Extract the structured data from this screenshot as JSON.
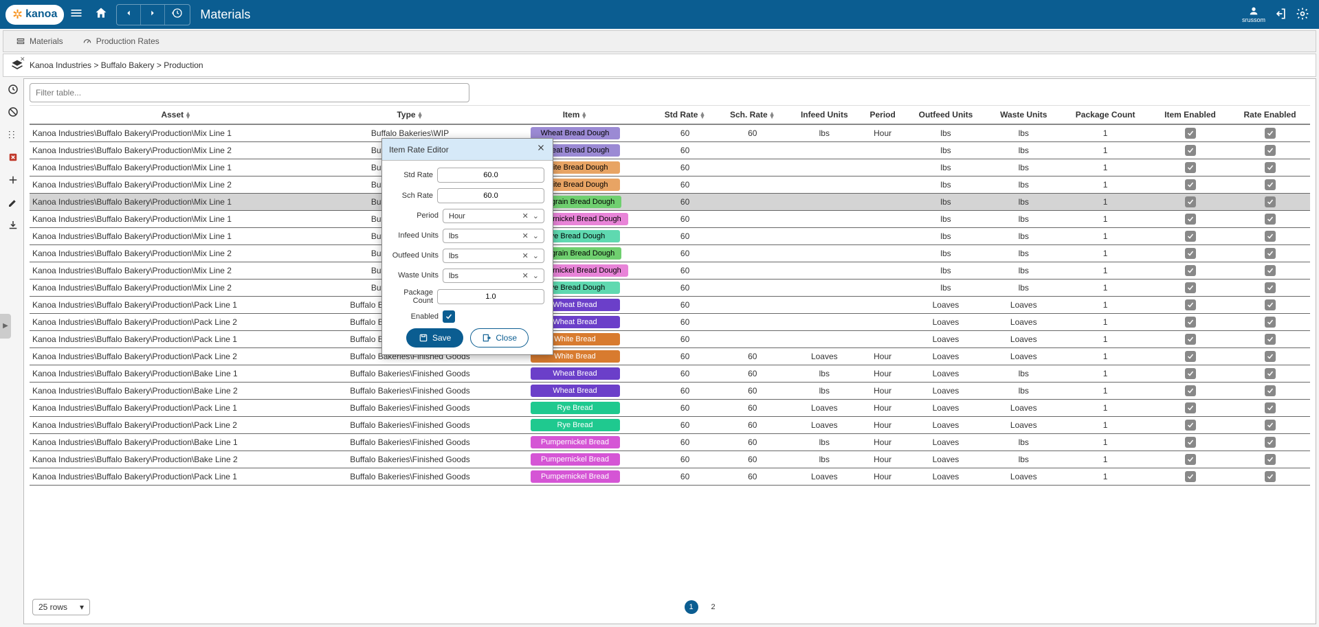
{
  "header": {
    "logo": "kanoa",
    "title": "Materials",
    "user": "srussom"
  },
  "tabs": [
    {
      "label": "Materials"
    },
    {
      "label": "Production Rates"
    }
  ],
  "breadcrumb": "Kanoa Industries > Buffalo Bakery > Production",
  "filter_placeholder": "Filter table...",
  "columns": [
    "Asset",
    "Type",
    "Item",
    "Std Rate",
    "Sch. Rate",
    "Infeed Units",
    "Period",
    "Outfeed Units",
    "Waste Units",
    "Package Count",
    "Item Enabled",
    "Rate Enabled"
  ],
  "item_colors": {
    "Wheat Bread Dough": "#9b8ad4",
    "White Bread Dough": "#e8a464",
    "Multigrain Bread Dough": "#6fcf6f",
    "Pumpernickel Bread Dough": "#e884d8",
    "Rye Bread Dough": "#5fd9b0",
    "Wheat Bread": {
      "bg": "#6b3fc9",
      "fg": "#ffffff"
    },
    "White Bread": {
      "bg": "#d87b2f",
      "fg": "#ffffff"
    },
    "Rye Bread": {
      "bg": "#1fc98f",
      "fg": "#ffffff"
    },
    "Pumpernickel Bread": {
      "bg": "#d555d5",
      "fg": "#ffffff"
    }
  },
  "rows": [
    {
      "asset": "Kanoa Industries\\Buffalo Bakery\\Production\\Mix Line 1",
      "type": "Buffalo Bakeries\\WIP",
      "item": "Wheat Bread Dough",
      "std": "60",
      "sch": "60",
      "in": "lbs",
      "period": "Hour",
      "out": "lbs",
      "waste": "lbs",
      "pkg": "1"
    },
    {
      "asset": "Kanoa Industries\\Buffalo Bakery\\Production\\Mix Line 2",
      "type": "Buffalo Bakeries\\WIP",
      "item": "Wheat Bread Dough",
      "std": "60",
      "sch": "",
      "in": "",
      "period": "",
      "out": "lbs",
      "waste": "lbs",
      "pkg": "1"
    },
    {
      "asset": "Kanoa Industries\\Buffalo Bakery\\Production\\Mix Line 1",
      "type": "Buffalo Bakeries\\WIP",
      "item": "White Bread Dough",
      "std": "60",
      "sch": "",
      "in": "",
      "period": "",
      "out": "lbs",
      "waste": "lbs",
      "pkg": "1"
    },
    {
      "asset": "Kanoa Industries\\Buffalo Bakery\\Production\\Mix Line 2",
      "type": "Buffalo Bakeries\\WIP",
      "item": "White Bread Dough",
      "std": "60",
      "sch": "",
      "in": "",
      "period": "",
      "out": "lbs",
      "waste": "lbs",
      "pkg": "1"
    },
    {
      "asset": "Kanoa Industries\\Buffalo Bakery\\Production\\Mix Line 1",
      "type": "Buffalo Bakeries\\WIP",
      "item": "Multigrain Bread Dough",
      "std": "60",
      "sch": "",
      "in": "",
      "period": "",
      "out": "lbs",
      "waste": "lbs",
      "pkg": "1",
      "selected": true
    },
    {
      "asset": "Kanoa Industries\\Buffalo Bakery\\Production\\Mix Line 1",
      "type": "Buffalo Bakeries\\WIP",
      "item": "Pumpernickel Bread Dough",
      "std": "60",
      "sch": "",
      "in": "",
      "period": "",
      "out": "lbs",
      "waste": "lbs",
      "pkg": "1"
    },
    {
      "asset": "Kanoa Industries\\Buffalo Bakery\\Production\\Mix Line 1",
      "type": "Buffalo Bakeries\\WIP",
      "item": "Rye Bread Dough",
      "std": "60",
      "sch": "",
      "in": "",
      "period": "",
      "out": "lbs",
      "waste": "lbs",
      "pkg": "1"
    },
    {
      "asset": "Kanoa Industries\\Buffalo Bakery\\Production\\Mix Line 2",
      "type": "Buffalo Bakeries\\WIP",
      "item": "Multigrain Bread Dough",
      "std": "60",
      "sch": "",
      "in": "",
      "period": "",
      "out": "lbs",
      "waste": "lbs",
      "pkg": "1"
    },
    {
      "asset": "Kanoa Industries\\Buffalo Bakery\\Production\\Mix Line 2",
      "type": "Buffalo Bakeries\\WIP",
      "item": "Pumpernickel Bread Dough",
      "std": "60",
      "sch": "",
      "in": "",
      "period": "",
      "out": "lbs",
      "waste": "lbs",
      "pkg": "1"
    },
    {
      "asset": "Kanoa Industries\\Buffalo Bakery\\Production\\Mix Line 2",
      "type": "Buffalo Bakeries\\WIP",
      "item": "Rye Bread Dough",
      "std": "60",
      "sch": "",
      "in": "",
      "period": "",
      "out": "lbs",
      "waste": "lbs",
      "pkg": "1"
    },
    {
      "asset": "Kanoa Industries\\Buffalo Bakery\\Production\\Pack Line 1",
      "type": "Buffalo Bakeries\\Finished Goods",
      "item": "Wheat Bread",
      "std": "60",
      "sch": "",
      "in": "",
      "period": "",
      "out": "Loaves",
      "waste": "Loaves",
      "pkg": "1"
    },
    {
      "asset": "Kanoa Industries\\Buffalo Bakery\\Production\\Pack Line 2",
      "type": "Buffalo Bakeries\\Finished Goods",
      "item": "Wheat Bread",
      "std": "60",
      "sch": "",
      "in": "",
      "period": "",
      "out": "Loaves",
      "waste": "Loaves",
      "pkg": "1"
    },
    {
      "asset": "Kanoa Industries\\Buffalo Bakery\\Production\\Pack Line 1",
      "type": "Buffalo Bakeries\\Finished Goods",
      "item": "White Bread",
      "std": "60",
      "sch": "",
      "in": "",
      "period": "",
      "out": "Loaves",
      "waste": "Loaves",
      "pkg": "1"
    },
    {
      "asset": "Kanoa Industries\\Buffalo Bakery\\Production\\Pack Line 2",
      "type": "Buffalo Bakeries\\Finished Goods",
      "item": "White Bread",
      "std": "60",
      "sch": "60",
      "in": "Loaves",
      "period": "Hour",
      "out": "Loaves",
      "waste": "Loaves",
      "pkg": "1"
    },
    {
      "asset": "Kanoa Industries\\Buffalo Bakery\\Production\\Bake Line 1",
      "type": "Buffalo Bakeries\\Finished Goods",
      "item": "Wheat Bread",
      "std": "60",
      "sch": "60",
      "in": "lbs",
      "period": "Hour",
      "out": "Loaves",
      "waste": "lbs",
      "pkg": "1"
    },
    {
      "asset": "Kanoa Industries\\Buffalo Bakery\\Production\\Bake Line 2",
      "type": "Buffalo Bakeries\\Finished Goods",
      "item": "Wheat Bread",
      "std": "60",
      "sch": "60",
      "in": "lbs",
      "period": "Hour",
      "out": "Loaves",
      "waste": "lbs",
      "pkg": "1"
    },
    {
      "asset": "Kanoa Industries\\Buffalo Bakery\\Production\\Pack Line 1",
      "type": "Buffalo Bakeries\\Finished Goods",
      "item": "Rye Bread",
      "std": "60",
      "sch": "60",
      "in": "Loaves",
      "period": "Hour",
      "out": "Loaves",
      "waste": "Loaves",
      "pkg": "1"
    },
    {
      "asset": "Kanoa Industries\\Buffalo Bakery\\Production\\Pack Line 2",
      "type": "Buffalo Bakeries\\Finished Goods",
      "item": "Rye Bread",
      "std": "60",
      "sch": "60",
      "in": "Loaves",
      "period": "Hour",
      "out": "Loaves",
      "waste": "Loaves",
      "pkg": "1"
    },
    {
      "asset": "Kanoa Industries\\Buffalo Bakery\\Production\\Bake Line 1",
      "type": "Buffalo Bakeries\\Finished Goods",
      "item": "Pumpernickel Bread",
      "std": "60",
      "sch": "60",
      "in": "lbs",
      "period": "Hour",
      "out": "Loaves",
      "waste": "lbs",
      "pkg": "1"
    },
    {
      "asset": "Kanoa Industries\\Buffalo Bakery\\Production\\Bake Line 2",
      "type": "Buffalo Bakeries\\Finished Goods",
      "item": "Pumpernickel Bread",
      "std": "60",
      "sch": "60",
      "in": "lbs",
      "period": "Hour",
      "out": "Loaves",
      "waste": "lbs",
      "pkg": "1"
    },
    {
      "asset": "Kanoa Industries\\Buffalo Bakery\\Production\\Pack Line 1",
      "type": "Buffalo Bakeries\\Finished Goods",
      "item": "Pumpernickel Bread",
      "std": "60",
      "sch": "60",
      "in": "Loaves",
      "period": "Hour",
      "out": "Loaves",
      "waste": "Loaves",
      "pkg": "1"
    }
  ],
  "rows_per_page": "25 rows",
  "pages": [
    "1",
    "2"
  ],
  "active_page": 0,
  "modal": {
    "title": "Item Rate Editor",
    "std_rate_label": "Std Rate",
    "std_rate": "60.0",
    "sch_rate_label": "Sch Rate",
    "sch_rate": "60.0",
    "period_label": "Period",
    "period": "Hour",
    "infeed_label": "Infeed Units",
    "infeed": "lbs",
    "outfeed_label": "Outfeed Units",
    "outfeed": "lbs",
    "waste_label": "Waste Units",
    "waste": "lbs",
    "pkg_label": "Package Count",
    "pkg": "1.0",
    "enabled_label": "Enabled",
    "save": "Save",
    "close": "Close"
  }
}
